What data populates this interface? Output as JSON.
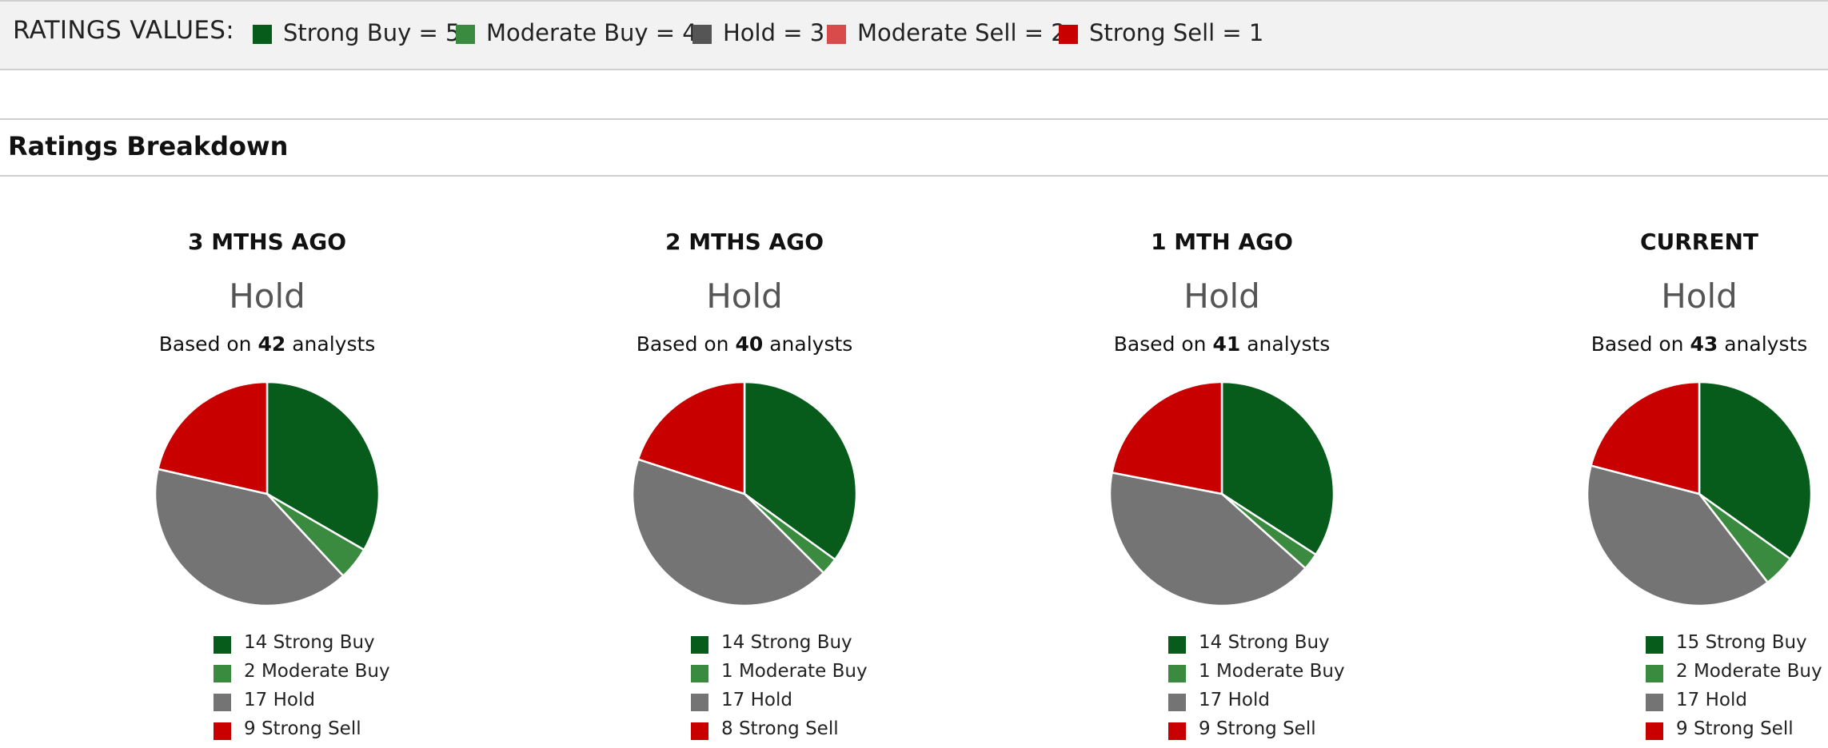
{
  "ratings_values": {
    "title": "RATINGS VALUES:",
    "items": [
      {
        "label": "Strong Buy = 5",
        "color": "#075c1c"
      },
      {
        "label": "Moderate Buy = 4",
        "color": "#3a8a3f"
      },
      {
        "label": "Hold = 3",
        "color": "#555555"
      },
      {
        "label": "Moderate Sell = 2",
        "color": "#d94a4a"
      },
      {
        "label": "Strong Sell = 1",
        "color": "#c80000"
      }
    ]
  },
  "section_title": "Ratings Breakdown",
  "chart_data": [
    {
      "type": "pie",
      "title": "3 MTHS AGO",
      "consensus": "Hold",
      "based_on_prefix": "Based on ",
      "analysts": "42",
      "based_on_suffix": " analysts",
      "slices": [
        {
          "label": "Strong Buy",
          "value": 14,
          "color": "#075c1c",
          "legend": "14 Strong Buy"
        },
        {
          "label": "Moderate Buy",
          "value": 2,
          "color": "#3a8a3f",
          "legend": "2 Moderate Buy"
        },
        {
          "label": "Hold",
          "value": 17,
          "color": "#747474",
          "legend": "17 Hold"
        },
        {
          "label": "Strong Sell",
          "value": 9,
          "color": "#c80000",
          "legend": "9 Strong Sell"
        }
      ]
    },
    {
      "type": "pie",
      "title": "2 MTHS AGO",
      "consensus": "Hold",
      "based_on_prefix": "Based on ",
      "analysts": "40",
      "based_on_suffix": " analysts",
      "slices": [
        {
          "label": "Strong Buy",
          "value": 14,
          "color": "#075c1c",
          "legend": "14 Strong Buy"
        },
        {
          "label": "Moderate Buy",
          "value": 1,
          "color": "#3a8a3f",
          "legend": "1 Moderate Buy"
        },
        {
          "label": "Hold",
          "value": 17,
          "color": "#747474",
          "legend": "17 Hold"
        },
        {
          "label": "Strong Sell",
          "value": 8,
          "color": "#c80000",
          "legend": "8 Strong Sell"
        }
      ]
    },
    {
      "type": "pie",
      "title": "1 MTH AGO",
      "consensus": "Hold",
      "based_on_prefix": "Based on ",
      "analysts": "41",
      "based_on_suffix": " analysts",
      "slices": [
        {
          "label": "Strong Buy",
          "value": 14,
          "color": "#075c1c",
          "legend": "14 Strong Buy"
        },
        {
          "label": "Moderate Buy",
          "value": 1,
          "color": "#3a8a3f",
          "legend": "1 Moderate Buy"
        },
        {
          "label": "Hold",
          "value": 17,
          "color": "#747474",
          "legend": "17 Hold"
        },
        {
          "label": "Strong Sell",
          "value": 9,
          "color": "#c80000",
          "legend": "9 Strong Sell"
        }
      ]
    },
    {
      "type": "pie",
      "title": "CURRENT",
      "consensus": "Hold",
      "based_on_prefix": "Based on ",
      "analysts": "43",
      "based_on_suffix": " analysts",
      "slices": [
        {
          "label": "Strong Buy",
          "value": 15,
          "color": "#075c1c",
          "legend": "15 Strong Buy"
        },
        {
          "label": "Moderate Buy",
          "value": 2,
          "color": "#3a8a3f",
          "legend": "2 Moderate Buy"
        },
        {
          "label": "Hold",
          "value": 17,
          "color": "#747474",
          "legend": "17 Hold"
        },
        {
          "label": "Strong Sell",
          "value": 9,
          "color": "#c80000",
          "legend": "9 Strong Sell"
        }
      ]
    }
  ]
}
